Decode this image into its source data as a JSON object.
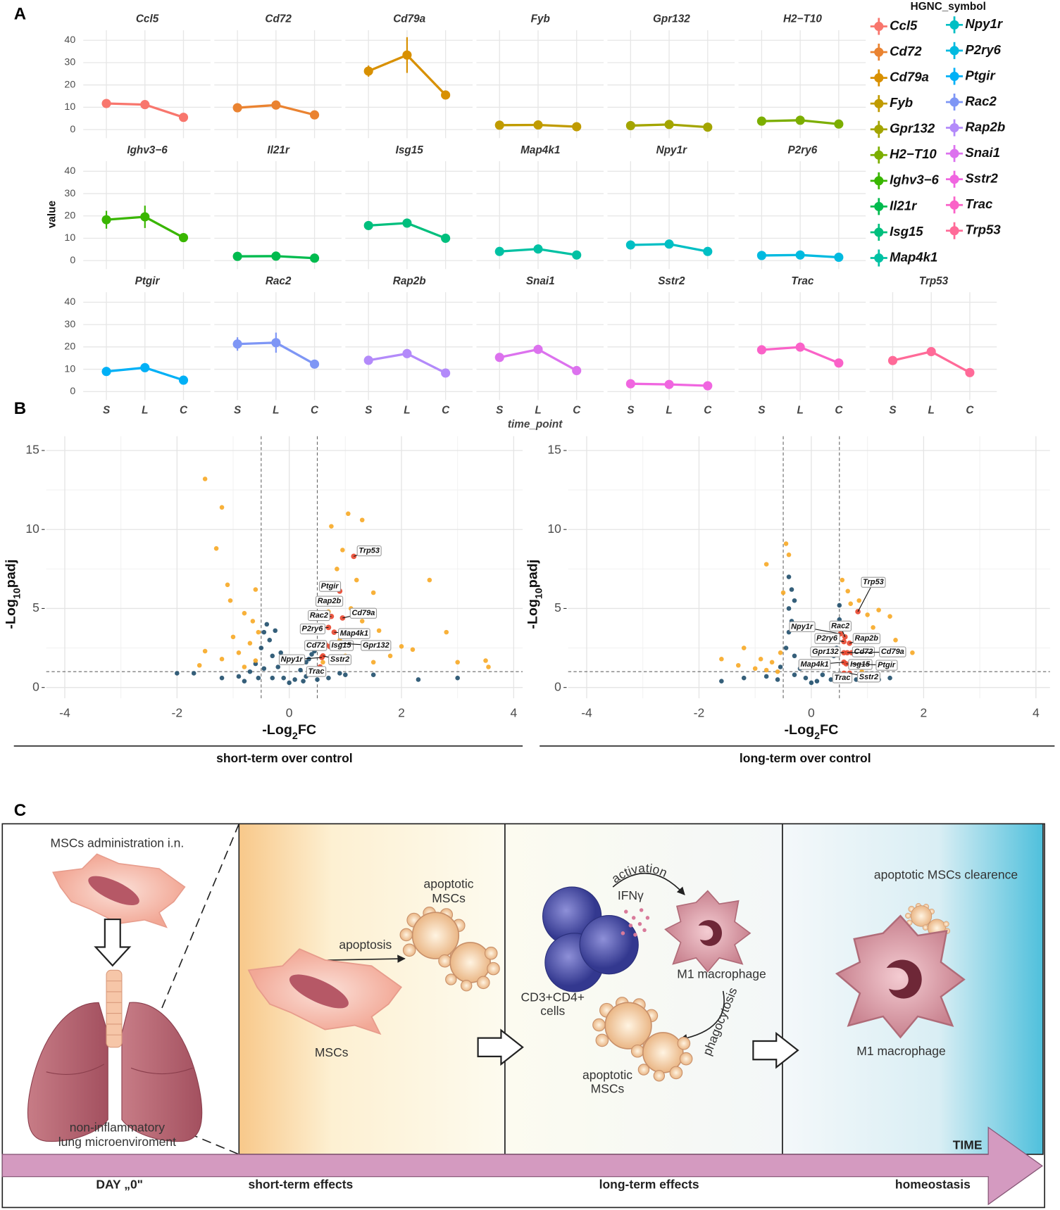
{
  "panel_labels": [
    "A",
    "B",
    "C"
  ],
  "chart_data": [
    {
      "type": "line",
      "categories": [
        "S",
        "L",
        "C"
      ],
      "ylabel": "value",
      "xlabel": "time_point",
      "legend_title": "HGNC_symbol",
      "ylim": [
        -3.8,
        44.5
      ],
      "yticks": [
        0,
        10,
        20,
        30,
        40
      ],
      "grid": true,
      "series": [
        {
          "name": "Ccl5",
          "color": "#F8766D",
          "values": [
            11.7,
            11.2,
            5.5
          ],
          "errors": [
            0.8,
            0.8,
            0.5
          ]
        },
        {
          "name": "Cd72",
          "color": "#EA8331",
          "values": [
            9.8,
            11,
            6.6
          ],
          "errors": [
            0.5,
            0.5,
            0.4
          ]
        },
        {
          "name": "Cd79a",
          "color": "#D89000",
          "values": [
            26.2,
            33.4,
            15.5
          ],
          "errors": [
            2.5,
            8,
            1
          ]
        },
        {
          "name": "Fyb",
          "color": "#C09B00",
          "values": [
            2,
            2.1,
            1.3
          ],
          "errors": [
            0.5,
            0.5,
            0.4
          ]
        },
        {
          "name": "Gpr132",
          "color": "#A3A500",
          "values": [
            1.8,
            2.3,
            1.1
          ],
          "errors": [
            0.5,
            0.5,
            0.4
          ]
        },
        {
          "name": "H2−T10",
          "color": "#7CAE00",
          "values": [
            3.8,
            4.2,
            2.5
          ],
          "errors": [
            0.5,
            0.5,
            0.4
          ]
        },
        {
          "name": "Ighv3−6",
          "color": "#39B600",
          "values": [
            18.3,
            19.6,
            10.3
          ],
          "errors": [
            4,
            5,
            1
          ]
        },
        {
          "name": "Il21r",
          "color": "#00BB4E",
          "values": [
            1.9,
            2,
            1.1
          ],
          "errors": [
            0.5,
            0.5,
            0.4
          ]
        },
        {
          "name": "Isg15",
          "color": "#00BF7D",
          "values": [
            15.7,
            16.8,
            10
          ],
          "errors": [
            1,
            2,
            1
          ]
        },
        {
          "name": "Map4k1",
          "color": "#00C1A3",
          "values": [
            4.1,
            5.2,
            2.5
          ],
          "errors": [
            0.5,
            0.5,
            0.4
          ]
        },
        {
          "name": "Npy1r",
          "color": "#00BFC4",
          "values": [
            7,
            7.4,
            4.1
          ],
          "errors": [
            0.5,
            0.5,
            0.4
          ]
        },
        {
          "name": "P2ry6",
          "color": "#00BAE0",
          "values": [
            2.3,
            2.5,
            1.5
          ],
          "errors": [
            0.5,
            0.5,
            0.4
          ]
        },
        {
          "name": "Ptgir",
          "color": "#00B0F6",
          "values": [
            9,
            10.7,
            5.1
          ],
          "errors": [
            0.8,
            1,
            0.6
          ]
        },
        {
          "name": "Rac2",
          "color": "#7E96F5",
          "values": [
            21.3,
            21.9,
            12.3
          ],
          "errors": [
            3,
            4.5,
            1
          ]
        },
        {
          "name": "Rap2b",
          "color": "#B38AFA",
          "values": [
            14,
            17,
            8.3
          ],
          "errors": [
            1,
            1.5,
            0.8
          ]
        },
        {
          "name": "Snai1",
          "color": "#DC72EE",
          "values": [
            15.3,
            18.9,
            9.4
          ],
          "errors": [
            1,
            1,
            0.8
          ]
        },
        {
          "name": "Sstr2",
          "color": "#F066E0",
          "values": [
            3.5,
            3.2,
            2.6
          ],
          "errors": [
            0.5,
            0.5,
            0.4
          ]
        },
        {
          "name": "Trac",
          "color": "#FA62C8",
          "values": [
            18.7,
            19.9,
            12.8
          ],
          "errors": [
            1,
            2,
            0.8
          ]
        },
        {
          "name": "Trp53",
          "color": "#FF6A98",
          "values": [
            13.9,
            17.9,
            8.5
          ],
          "errors": [
            1.5,
            1,
            0.5
          ]
        }
      ]
    },
    {
      "type": "scatter",
      "subtitle": "short-term over control",
      "xlabel": {
        "pre": "-Log",
        "sub": "2",
        "post": "FC"
      },
      "ylabel": {
        "pre": "-Log",
        "sub": "10",
        "post": "padj"
      },
      "xlim": [
        -4.33,
        4.16
      ],
      "ylim": [
        -0.68,
        15.9
      ],
      "xticks": [
        -4,
        -2,
        0,
        2,
        4
      ],
      "yticks": [
        0,
        5,
        10,
        15
      ],
      "grid": true,
      "vlines": [
        -0.5,
        0.5
      ],
      "hline": 1,
      "series": [
        {
          "color": "#1f4e6b",
          "x": [
            -2.0,
            -1.7,
            -1.2,
            -0.9,
            -0.7,
            -0.6,
            -0.5,
            -0.45,
            -0.4,
            -0.35,
            -0.3,
            -0.2,
            -0.1,
            0,
            0.1,
            0.2,
            0.3,
            0.35,
            0.4,
            0.45,
            -0.55,
            -0.3,
            0.3,
            0.5,
            0.7,
            1.0,
            1.5,
            2.3,
            3.0,
            -0.25,
            -0.15,
            0.25,
            -0.45,
            0.6,
            0.9,
            -0.8
          ],
          "y": [
            0.9,
            0.9,
            0.6,
            0.7,
            1.0,
            1.5,
            2.5,
            3.5,
            4.0,
            3.0,
            2.0,
            1.3,
            0.6,
            0.3,
            0.5,
            1.1,
            1.6,
            1.8,
            2.1,
            2.3,
            0.6,
            0.6,
            0.7,
            0.5,
            0.6,
            0.8,
            0.8,
            0.5,
            0.6,
            3.6,
            2.2,
            0.4,
            1.2,
            1.0,
            0.9,
            0.4
          ]
        },
        {
          "color": "#f7a825",
          "x": [
            -1.5,
            -1.2,
            -1.3,
            -1.1,
            -1.05,
            -0.8,
            -0.65,
            -1.0,
            -0.7,
            -0.9,
            -0.6,
            -1.5,
            -1.2,
            -0.8,
            -0.55,
            -1.6,
            1.05,
            1.3,
            0.75,
            0.95,
            0.85,
            1.2,
            1.5,
            1.1,
            1.3,
            1.6,
            2.0,
            2.5,
            2.8,
            3.5,
            3.55,
            3.0,
            1.5,
            1.8,
            0.6,
            0.7,
            0.9,
            1.0,
            2.2,
            -0.6
          ],
          "y": [
            13.2,
            11.4,
            8.8,
            6.5,
            5.5,
            4.7,
            4.2,
            3.2,
            2.8,
            2.2,
            1.7,
            2.3,
            1.8,
            1.3,
            3.5,
            1.4,
            11.0,
            10.6,
            10.2,
            8.7,
            7.5,
            6.8,
            6.0,
            5.0,
            4.2,
            3.6,
            2.6,
            6.8,
            3.5,
            1.7,
            1.3,
            1.6,
            1.6,
            2.0,
            1.6,
            4.8,
            3.0,
            2.0,
            2.4,
            6.2
          ]
        },
        {
          "color": "#e8452c",
          "labels": [
            "Trp53",
            "Ptgir",
            "Rap2b",
            "Rac2",
            "Cd79a",
            "P2ry6",
            "Map4k1",
            "Cd72",
            "Isg15",
            "Gpr132",
            "Npy1r",
            "Sstr2",
            "Trac"
          ],
          "x": [
            1.15,
            0.9,
            0.85,
            0.75,
            0.95,
            0.7,
            0.8,
            0.65,
            0.72,
            0.9,
            0.58,
            0.6,
            0.55
          ],
          "y": [
            8.3,
            6.1,
            5.6,
            4.5,
            4.4,
            3.8,
            3.5,
            2.7,
            2.6,
            2.8,
            1.9,
            2.0,
            1.3
          ]
        }
      ]
    },
    {
      "type": "scatter",
      "subtitle": "long-term over control",
      "xlabel": {
        "pre": "-Log",
        "sub": "2",
        "post": "FC"
      },
      "ylabel": {
        "pre": "-Log",
        "sub": "10",
        "post": "padj"
      },
      "xlim": [
        -4.33,
        4.25
      ],
      "ylim": [
        -0.68,
        15.9
      ],
      "xticks": [
        -4,
        -2,
        0,
        2,
        4
      ],
      "yticks": [
        0,
        5,
        10,
        15
      ],
      "grid": true,
      "vlines": [
        -0.5,
        0.5
      ],
      "hline": 1,
      "series": [
        {
          "color": "#1f4e6b",
          "x": [
            -0.4,
            -0.35,
            -0.3,
            -0.4,
            -1.6,
            -1.2,
            -0.8,
            -0.55,
            -0.45,
            -0.4,
            -0.35,
            -0.3,
            -0.2,
            -0.1,
            0,
            0.1,
            0.2,
            0.3,
            0.4,
            0.45,
            0.5,
            0.5,
            0.45,
            0.6,
            0.8,
            1.2,
            1.4,
            -0.6,
            -0.3,
            0.35
          ],
          "y": [
            7.0,
            6.2,
            5.5,
            5.0,
            0.4,
            0.6,
            0.7,
            1.3,
            2.5,
            3.5,
            4.2,
            2.0,
            1.2,
            0.6,
            0.3,
            0.4,
            0.8,
            1.3,
            2.0,
            3.0,
            4.3,
            5.2,
            2.5,
            0.7,
            0.5,
            0.5,
            0.6,
            0.5,
            0.8,
            0.5
          ]
        },
        {
          "color": "#f7a825",
          "x": [
            -0.45,
            -0.4,
            -0.8,
            -0.5,
            -1.2,
            -1.6,
            -0.9,
            -0.7,
            -1.0,
            -0.55,
            -1.3,
            0.55,
            0.65,
            0.85,
            0.7,
            1.0,
            1.2,
            1.4,
            1.1,
            1.5,
            1.35,
            1.8,
            1.0,
            0.9,
            0.55,
            1.2,
            -0.6,
            -0.8
          ],
          "y": [
            9.1,
            8.4,
            7.8,
            6.0,
            2.5,
            1.8,
            1.8,
            1.6,
            1.2,
            2.2,
            1.4,
            6.8,
            6.1,
            5.5,
            5.3,
            4.6,
            4.9,
            4.5,
            3.8,
            3.0,
            2.2,
            2.2,
            1.5,
            1.0,
            4.0,
            1.6,
            1.0,
            1.1
          ]
        },
        {
          "color": "#e8452c",
          "labels": [
            "Trp53",
            "Npy1r",
            "Rac2",
            "P2ry6",
            "Rap2b",
            "Gpr132",
            "Cd72",
            "Cd79a",
            "Map4k1",
            "Isg15",
            "Ptgir",
            "Trac",
            "Sstr2"
          ],
          "x": [
            0.83,
            0.52,
            0.6,
            0.58,
            0.68,
            0.58,
            0.64,
            0.72,
            0.58,
            0.62,
            0.72,
            0.58,
            0.68
          ],
          "y": [
            4.8,
            3.4,
            3.2,
            2.9,
            2.8,
            2.2,
            2.2,
            2.2,
            1.6,
            1.5,
            1.5,
            0.9,
            0.9
          ]
        }
      ]
    }
  ],
  "diagram": {
    "intro": {
      "title": "MSCs administration i.n.",
      "caption": [
        "non-inflammatory",
        "lung microenviroment"
      ]
    },
    "short_term": {
      "apoptotic": [
        "apoptotic",
        "MSCs"
      ],
      "process": "apoptosis",
      "cell": "MSCs"
    },
    "long_term": {
      "activation": "activation",
      "cytokine": "IFNγ",
      "tcells": [
        "CD3+CD4+",
        "cells"
      ],
      "macrophage": "M1 macrophage",
      "phagocytosis": "phagocytosis",
      "apoptotic": [
        "apoptotic",
        "MSCs"
      ]
    },
    "homeostasis": {
      "title": "apoptotic MSCs clearence",
      "macrophage": "M1 macrophage"
    },
    "timeline": {
      "axis": "TIME",
      "stages": [
        "DAY „0\"",
        "short-term effects",
        "long-term effects",
        "homeostasis"
      ]
    }
  }
}
